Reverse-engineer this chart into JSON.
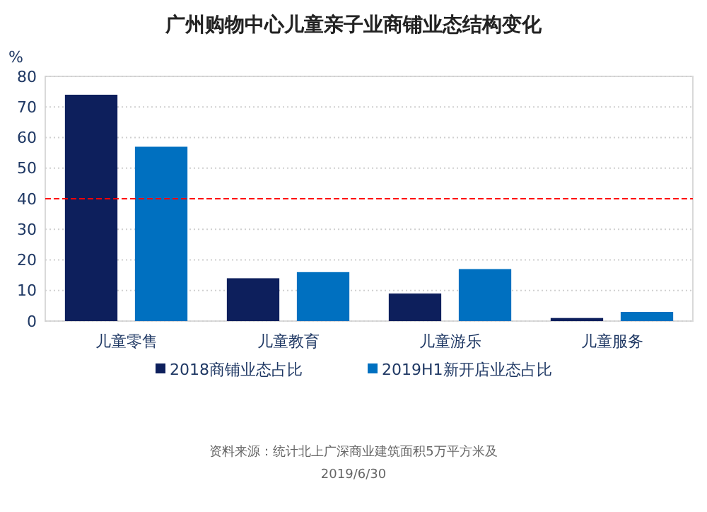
{
  "chart_data": {
    "type": "bar",
    "title": "广州购物中心儿童亲子业商铺业态结构变化",
    "ylabel": "%",
    "categories": [
      "儿童零售",
      "儿童教育",
      "儿童游乐",
      "儿童服务"
    ],
    "series": [
      {
        "name": "2018商铺业态占比",
        "color": "#0d1f5c",
        "values": [
          74,
          14,
          9,
          1
        ]
      },
      {
        "name": "2019H1新开店业态占比",
        "color": "#0070c0",
        "values": [
          57,
          16,
          17,
          3
        ]
      }
    ],
    "ylim": [
      0,
      80
    ],
    "yticks": [
      0,
      10,
      20,
      30,
      40,
      50,
      60,
      70,
      80
    ],
    "grid": "y",
    "legend": "bottom",
    "ref_lines": [
      {
        "axis": "y",
        "value": 40,
        "color": "#ff0000",
        "line_style": "dashed"
      }
    ],
    "annotations": [
      "资料来源：统计北上广深商业建筑面积5万平方米及",
      "2019/6/30"
    ]
  }
}
